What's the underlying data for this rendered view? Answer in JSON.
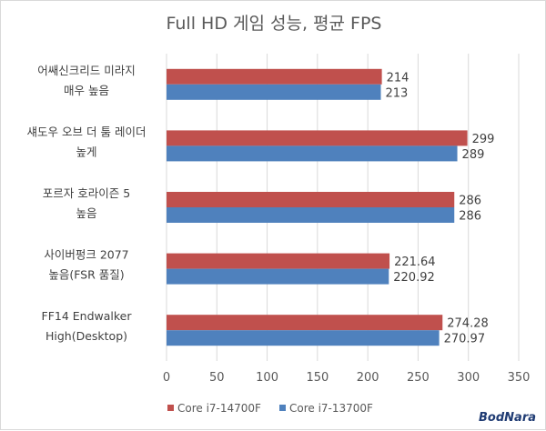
{
  "chart_data": {
    "type": "bar",
    "orientation": "horizontal",
    "title": "Full HD 게임 성능, 평균 FPS",
    "categories": [
      [
        "어쌔신크리드 미라지",
        "매우 높음"
      ],
      [
        "섀도우 오브 더 툼 레이더",
        "높게"
      ],
      [
        "포르자 호라이즌 5",
        "높음"
      ],
      [
        "사이버펑크 2077",
        "높음(FSR 품질)"
      ],
      [
        "FF14 Endwalker",
        "High(Desktop)"
      ]
    ],
    "series": [
      {
        "name": "Core i7-14700F",
        "color": "#c0504d",
        "values": [
          214,
          299,
          286,
          221.64,
          274.28
        ],
        "labels": [
          "214",
          "299",
          "286",
          "221.64",
          "274.28"
        ]
      },
      {
        "name": "Core i7-13700F",
        "color": "#4f81bd",
        "values": [
          213,
          289,
          286,
          220.92,
          270.97
        ],
        "labels": [
          "213",
          "289",
          "286",
          "220.92",
          "270.97"
        ]
      }
    ],
    "xlim": [
      0,
      350
    ],
    "xticks": [
      0,
      50,
      100,
      150,
      200,
      250,
      300,
      350
    ],
    "grid": true,
    "legend_position": "bottom"
  },
  "watermark": "BodNara"
}
